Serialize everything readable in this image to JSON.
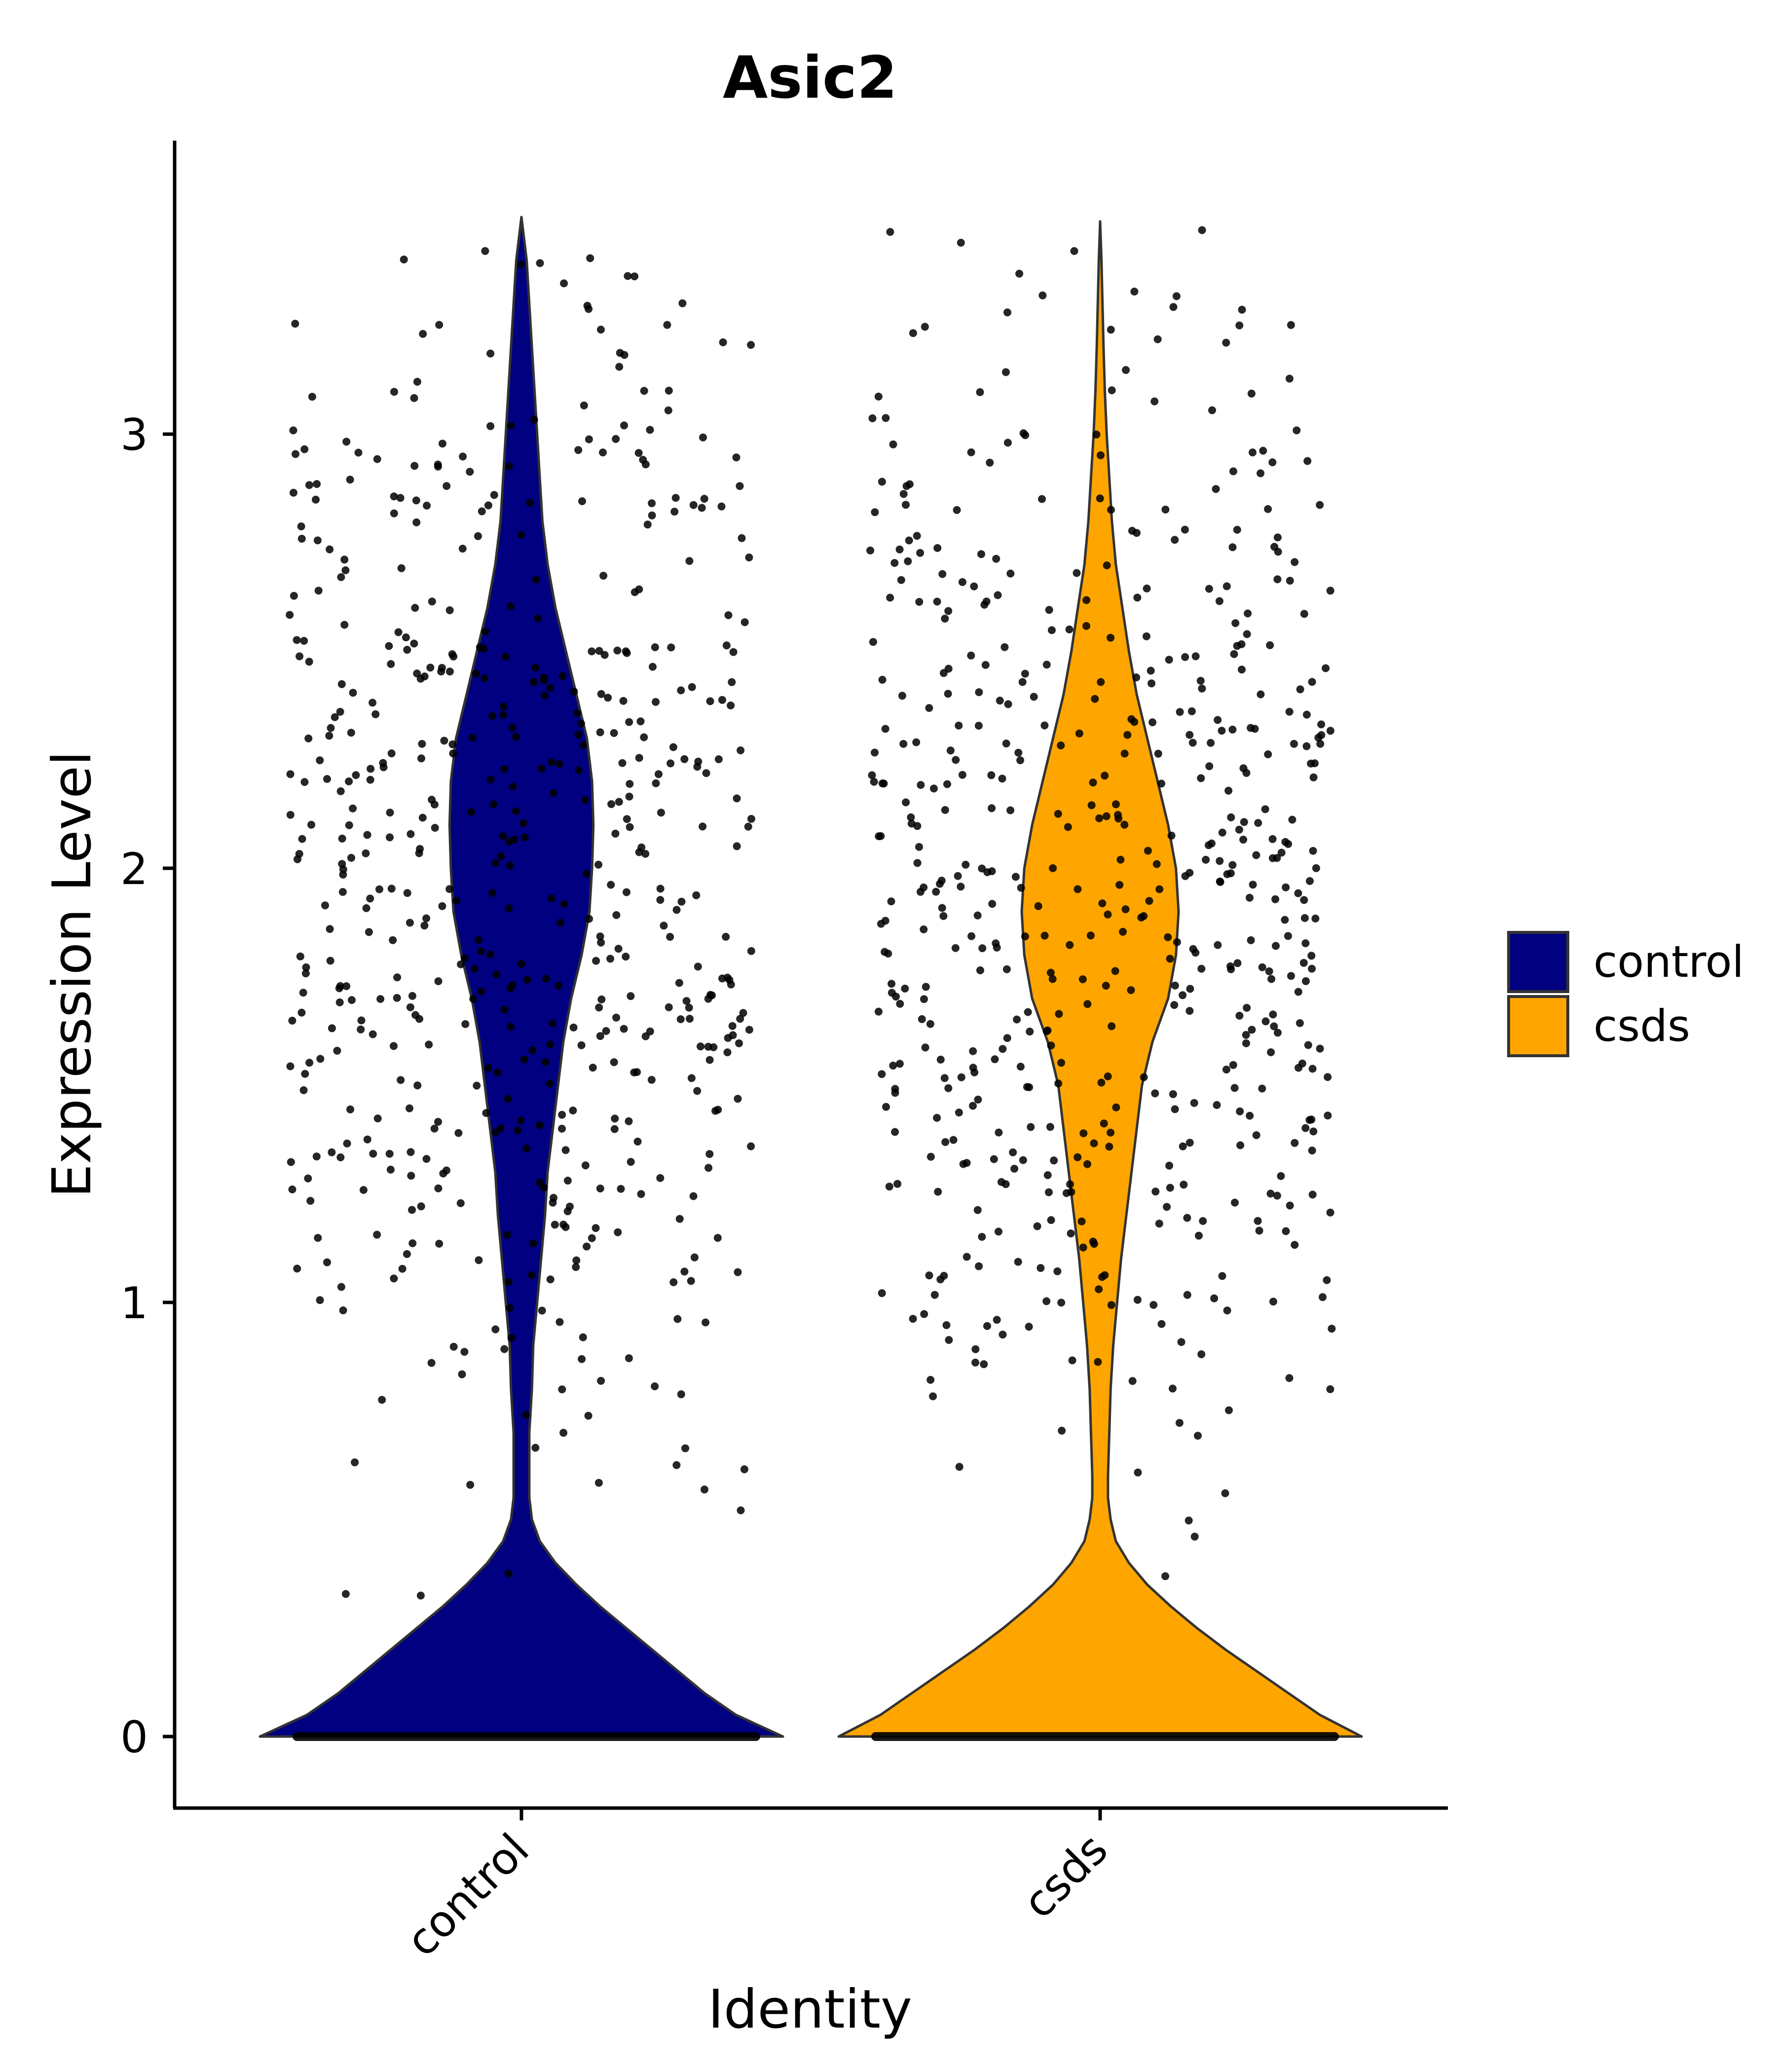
{
  "chart_data": {
    "type": "violin",
    "title": "Asic2",
    "xlabel": "Identity",
    "ylabel": "Expression Level",
    "categories": [
      "control",
      "csds"
    ],
    "ylim": [
      -0.17,
      3.6
    ],
    "yticks": [
      0,
      1,
      2,
      3
    ],
    "ytick_labels": [
      "0",
      "1",
      "2",
      "3"
    ],
    "legend": {
      "placement": "right",
      "entries": [
        {
          "label": "control",
          "color": "#000080"
        },
        {
          "label": "csds",
          "color": "#FFA500"
        }
      ]
    },
    "series": [
      {
        "name": "control",
        "color": "#000080",
        "max": 3.5,
        "density": [
          [
            0.0,
            1.0
          ],
          [
            0.05,
            0.82
          ],
          [
            0.1,
            0.7
          ],
          [
            0.15,
            0.6
          ],
          [
            0.2,
            0.5
          ],
          [
            0.25,
            0.4
          ],
          [
            0.3,
            0.3
          ],
          [
            0.35,
            0.21
          ],
          [
            0.4,
            0.13
          ],
          [
            0.45,
            0.07
          ],
          [
            0.5,
            0.04
          ],
          [
            0.55,
            0.03
          ],
          [
            0.6,
            0.03
          ],
          [
            0.7,
            0.03
          ],
          [
            0.8,
            0.04
          ],
          [
            0.9,
            0.045
          ],
          [
            1.0,
            0.06
          ],
          [
            1.1,
            0.075
          ],
          [
            1.2,
            0.09
          ],
          [
            1.3,
            0.1
          ],
          [
            1.4,
            0.12
          ],
          [
            1.5,
            0.14
          ],
          [
            1.6,
            0.16
          ],
          [
            1.7,
            0.19
          ],
          [
            1.8,
            0.23
          ],
          [
            1.9,
            0.26
          ],
          [
            2.0,
            0.27
          ],
          [
            2.1,
            0.275
          ],
          [
            2.2,
            0.27
          ],
          [
            2.3,
            0.25
          ],
          [
            2.4,
            0.21
          ],
          [
            2.5,
            0.17
          ],
          [
            2.6,
            0.13
          ],
          [
            2.7,
            0.1
          ],
          [
            2.8,
            0.08
          ],
          [
            2.9,
            0.07
          ],
          [
            3.0,
            0.06
          ],
          [
            3.1,
            0.05
          ],
          [
            3.2,
            0.04
          ],
          [
            3.3,
            0.03
          ],
          [
            3.4,
            0.02
          ],
          [
            3.5,
            0.0
          ]
        ]
      },
      {
        "name": "csds",
        "color": "#FFA500",
        "max": 3.49,
        "density": [
          [
            0.0,
            1.0
          ],
          [
            0.05,
            0.84
          ],
          [
            0.1,
            0.72
          ],
          [
            0.15,
            0.6
          ],
          [
            0.2,
            0.48
          ],
          [
            0.25,
            0.37
          ],
          [
            0.3,
            0.27
          ],
          [
            0.35,
            0.18
          ],
          [
            0.4,
            0.11
          ],
          [
            0.45,
            0.06
          ],
          [
            0.5,
            0.04
          ],
          [
            0.55,
            0.03
          ],
          [
            0.6,
            0.03
          ],
          [
            0.7,
            0.035
          ],
          [
            0.8,
            0.04
          ],
          [
            0.9,
            0.05
          ],
          [
            1.0,
            0.065
          ],
          [
            1.1,
            0.08
          ],
          [
            1.2,
            0.1
          ],
          [
            1.3,
            0.12
          ],
          [
            1.4,
            0.14
          ],
          [
            1.5,
            0.16
          ],
          [
            1.6,
            0.2
          ],
          [
            1.7,
            0.26
          ],
          [
            1.8,
            0.29
          ],
          [
            1.9,
            0.3
          ],
          [
            2.0,
            0.29
          ],
          [
            2.1,
            0.26
          ],
          [
            2.2,
            0.22
          ],
          [
            2.3,
            0.18
          ],
          [
            2.4,
            0.14
          ],
          [
            2.5,
            0.11
          ],
          [
            2.6,
            0.085
          ],
          [
            2.7,
            0.06
          ],
          [
            2.8,
            0.045
          ],
          [
            2.9,
            0.035
          ],
          [
            3.0,
            0.025
          ],
          [
            3.1,
            0.018
          ],
          [
            3.2,
            0.013
          ],
          [
            3.3,
            0.009
          ],
          [
            3.4,
            0.005
          ],
          [
            3.49,
            0.0
          ]
        ]
      }
    ]
  }
}
